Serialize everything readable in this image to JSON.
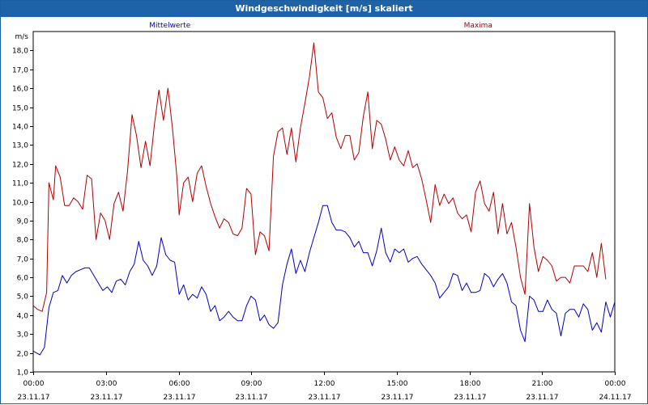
{
  "window": {
    "title": "Windgeschwindigkeit [m/s] skaliert"
  },
  "chart_data": {
    "type": "line",
    "title": "Windgeschwindigkeit [m/s] skaliert",
    "ylabel": "m/s",
    "xlabel": "",
    "ylim": [
      1.0,
      19.0
    ],
    "xlim_hours": [
      0,
      24
    ],
    "y_ticks": [
      "1,0",
      "2,0",
      "3,0",
      "4,0",
      "5,0",
      "6,0",
      "7,0",
      "8,0",
      "9,0",
      "10,0",
      "11,0",
      "12,0",
      "13,0",
      "14,0",
      "15,0",
      "16,0",
      "17,0",
      "18,0"
    ],
    "x_ticks": [
      {
        "time": "00:00",
        "date": "23.11.17"
      },
      {
        "time": "03:00",
        "date": "23.11.17"
      },
      {
        "time": "06:00",
        "date": "23.11.17"
      },
      {
        "time": "09:00",
        "date": "23.11.17"
      },
      {
        "time": "12:00",
        "date": "23.11.17"
      },
      {
        "time": "15:00",
        "date": "23.11.17"
      },
      {
        "time": "18:00",
        "date": "23.11.17"
      },
      {
        "time": "21:00",
        "date": "23.11.17"
      },
      {
        "time": "00:00",
        "date": "24.11.17"
      }
    ],
    "grid": true,
    "series": [
      {
        "name": "Mittelwerte",
        "color": "#0000c0",
        "points": [
          [
            0.0,
            2.1
          ],
          [
            0.3,
            1.9
          ],
          [
            0.5,
            2.3
          ],
          [
            0.7,
            4.4
          ],
          [
            0.9,
            5.2
          ],
          [
            1.1,
            5.3
          ],
          [
            1.3,
            6.1
          ],
          [
            1.5,
            5.7
          ],
          [
            1.7,
            6.1
          ],
          [
            1.9,
            6.3
          ],
          [
            2.1,
            6.4
          ],
          [
            2.3,
            6.5
          ],
          [
            2.5,
            6.5
          ],
          [
            2.7,
            6.1
          ],
          [
            2.9,
            5.7
          ],
          [
            3.1,
            5.3
          ],
          [
            3.3,
            5.5
          ],
          [
            3.5,
            5.2
          ],
          [
            3.7,
            5.8
          ],
          [
            3.9,
            5.9
          ],
          [
            4.1,
            5.6
          ],
          [
            4.3,
            6.3
          ],
          [
            4.5,
            6.7
          ],
          [
            4.7,
            7.9
          ],
          [
            4.9,
            6.9
          ],
          [
            5.1,
            6.6
          ],
          [
            5.3,
            6.1
          ],
          [
            5.5,
            6.6
          ],
          [
            5.7,
            8.1
          ],
          [
            5.9,
            7.2
          ],
          [
            6.1,
            6.9
          ],
          [
            6.3,
            6.8
          ],
          [
            6.5,
            5.1
          ],
          [
            6.7,
            5.6
          ],
          [
            6.9,
            4.8
          ],
          [
            7.1,
            5.1
          ],
          [
            7.3,
            4.9
          ],
          [
            7.5,
            5.5
          ],
          [
            7.7,
            5.1
          ],
          [
            7.9,
            4.2
          ],
          [
            8.1,
            4.5
          ],
          [
            8.3,
            3.7
          ],
          [
            8.5,
            3.9
          ],
          [
            8.7,
            4.2
          ],
          [
            8.9,
            3.9
          ],
          [
            9.1,
            3.7
          ],
          [
            9.3,
            3.7
          ],
          [
            9.5,
            4.5
          ],
          [
            9.7,
            5.0
          ],
          [
            9.9,
            4.8
          ],
          [
            10.1,
            3.7
          ],
          [
            10.3,
            4.0
          ],
          [
            10.5,
            3.5
          ],
          [
            10.7,
            3.3
          ],
          [
            10.9,
            3.6
          ],
          [
            11.1,
            5.6
          ],
          [
            11.3,
            6.7
          ],
          [
            11.5,
            7.5
          ],
          [
            11.7,
            6.2
          ],
          [
            11.9,
            6.9
          ],
          [
            12.1,
            6.3
          ],
          [
            12.3,
            7.3
          ],
          [
            12.5,
            8.1
          ],
          [
            12.7,
            8.9
          ],
          [
            12.9,
            9.8
          ],
          [
            13.1,
            9.8
          ],
          [
            13.3,
            8.9
          ],
          [
            13.5,
            8.5
          ],
          [
            13.7,
            8.5
          ],
          [
            13.9,
            8.4
          ],
          [
            14.1,
            8.1
          ],
          [
            14.3,
            7.6
          ],
          [
            14.5,
            7.9
          ],
          [
            14.7,
            7.3
          ],
          [
            14.9,
            7.3
          ],
          [
            15.1,
            6.6
          ],
          [
            15.3,
            7.4
          ],
          [
            15.5,
            8.6
          ],
          [
            15.7,
            7.3
          ],
          [
            15.9,
            6.8
          ],
          [
            16.1,
            7.5
          ],
          [
            16.3,
            7.3
          ],
          [
            16.5,
            7.5
          ],
          [
            16.7,
            6.8
          ],
          [
            16.9,
            7.0
          ],
          [
            17.1,
            7.1
          ],
          [
            17.3,
            6.7
          ],
          [
            17.5,
            6.4
          ],
          [
            17.7,
            6.1
          ],
          [
            17.9,
            5.7
          ],
          [
            18.1,
            4.9
          ],
          [
            18.3,
            5.2
          ],
          [
            18.5,
            5.5
          ],
          [
            18.7,
            6.2
          ],
          [
            18.9,
            6.1
          ],
          [
            19.1,
            5.3
          ],
          [
            19.3,
            5.7
          ],
          [
            19.5,
            5.2
          ],
          [
            19.7,
            5.2
          ],
          [
            19.9,
            5.3
          ],
          [
            20.1,
            6.2
          ],
          [
            20.3,
            6.0
          ],
          [
            20.5,
            5.5
          ],
          [
            20.7,
            5.9
          ],
          [
            20.9,
            6.2
          ],
          [
            21.1,
            5.7
          ],
          [
            21.3,
            4.7
          ],
          [
            21.5,
            4.5
          ],
          [
            21.7,
            3.2
          ],
          [
            21.9,
            2.6
          ],
          [
            22.1,
            5.0
          ],
          [
            22.3,
            4.8
          ],
          [
            22.5,
            4.2
          ],
          [
            22.7,
            4.2
          ],
          [
            22.9,
            4.8
          ],
          [
            23.1,
            4.3
          ],
          [
            23.3,
            4.1
          ],
          [
            23.5,
            2.9
          ],
          [
            23.7,
            4.1
          ],
          [
            23.9,
            4.3
          ],
          [
            24.1,
            4.3
          ],
          [
            24.3,
            3.9
          ],
          [
            24.5,
            4.6
          ],
          [
            24.7,
            4.3
          ],
          [
            24.9,
            3.2
          ],
          [
            25.1,
            3.6
          ],
          [
            25.3,
            3.1
          ],
          [
            25.5,
            4.7
          ],
          [
            25.7,
            3.9
          ],
          [
            25.9,
            4.7
          ]
        ]
      },
      {
        "name": "Maxima",
        "color": "#b00000",
        "points": [
          [
            0.0,
            4.5
          ],
          [
            0.2,
            4.3
          ],
          [
            0.4,
            4.2
          ],
          [
            0.6,
            5.2
          ],
          [
            0.7,
            11.0
          ],
          [
            0.9,
            10.1
          ],
          [
            1.0,
            11.9
          ],
          [
            1.2,
            11.3
          ],
          [
            1.4,
            9.8
          ],
          [
            1.6,
            9.8
          ],
          [
            1.8,
            10.2
          ],
          [
            2.0,
            10.0
          ],
          [
            2.2,
            9.6
          ],
          [
            2.4,
            11.4
          ],
          [
            2.6,
            11.2
          ],
          [
            2.8,
            8.0
          ],
          [
            3.0,
            9.4
          ],
          [
            3.2,
            9.0
          ],
          [
            3.4,
            8.0
          ],
          [
            3.6,
            9.9
          ],
          [
            3.8,
            10.5
          ],
          [
            4.0,
            9.5
          ],
          [
            4.2,
            11.6
          ],
          [
            4.4,
            14.6
          ],
          [
            4.6,
            13.5
          ],
          [
            4.8,
            11.8
          ],
          [
            5.0,
            13.2
          ],
          [
            5.2,
            11.9
          ],
          [
            5.4,
            14.1
          ],
          [
            5.6,
            15.9
          ],
          [
            5.8,
            14.3
          ],
          [
            6.0,
            16.0
          ],
          [
            6.2,
            13.9
          ],
          [
            6.4,
            11.3
          ],
          [
            6.5,
            9.3
          ],
          [
            6.7,
            11.0
          ],
          [
            6.9,
            11.3
          ],
          [
            7.1,
            10.0
          ],
          [
            7.3,
            11.5
          ],
          [
            7.5,
            11.9
          ],
          [
            7.7,
            10.8
          ],
          [
            7.9,
            9.9
          ],
          [
            8.1,
            9.2
          ],
          [
            8.3,
            8.6
          ],
          [
            8.5,
            9.1
          ],
          [
            8.7,
            8.9
          ],
          [
            8.9,
            8.3
          ],
          [
            9.1,
            8.2
          ],
          [
            9.3,
            8.6
          ],
          [
            9.5,
            10.7
          ],
          [
            9.7,
            10.4
          ],
          [
            9.9,
            7.2
          ],
          [
            10.1,
            8.4
          ],
          [
            10.3,
            8.2
          ],
          [
            10.5,
            7.4
          ],
          [
            10.7,
            12.4
          ],
          [
            10.9,
            13.7
          ],
          [
            11.1,
            13.9
          ],
          [
            11.3,
            12.5
          ],
          [
            11.5,
            13.9
          ],
          [
            11.7,
            12.1
          ],
          [
            11.9,
            13.9
          ],
          [
            12.1,
            15.2
          ],
          [
            12.3,
            16.6
          ],
          [
            12.5,
            18.4
          ],
          [
            12.7,
            15.8
          ],
          [
            12.9,
            15.5
          ],
          [
            13.1,
            14.4
          ],
          [
            13.3,
            14.7
          ],
          [
            13.5,
            13.4
          ],
          [
            13.7,
            12.8
          ],
          [
            13.9,
            13.5
          ],
          [
            14.1,
            13.5
          ],
          [
            14.3,
            12.2
          ],
          [
            14.5,
            12.6
          ],
          [
            14.7,
            14.5
          ],
          [
            14.9,
            15.8
          ],
          [
            15.1,
            12.8
          ],
          [
            15.3,
            14.3
          ],
          [
            15.5,
            14.1
          ],
          [
            15.7,
            13.3
          ],
          [
            15.9,
            12.2
          ],
          [
            16.1,
            12.9
          ],
          [
            16.3,
            12.2
          ],
          [
            16.5,
            11.9
          ],
          [
            16.7,
            12.7
          ],
          [
            16.9,
            11.8
          ],
          [
            17.1,
            12.0
          ],
          [
            17.3,
            11.2
          ],
          [
            17.5,
            10.1
          ],
          [
            17.7,
            8.9
          ],
          [
            17.9,
            10.9
          ],
          [
            18.1,
            9.8
          ],
          [
            18.3,
            10.4
          ],
          [
            18.5,
            9.9
          ],
          [
            18.7,
            10.2
          ],
          [
            18.9,
            9.4
          ],
          [
            19.1,
            9.1
          ],
          [
            19.3,
            9.3
          ],
          [
            19.5,
            8.4
          ],
          [
            19.7,
            10.5
          ],
          [
            19.9,
            11.1
          ],
          [
            20.1,
            9.9
          ],
          [
            20.3,
            9.5
          ],
          [
            20.5,
            10.5
          ],
          [
            20.7,
            8.3
          ],
          [
            20.9,
            9.9
          ],
          [
            21.1,
            8.3
          ],
          [
            21.3,
            8.9
          ],
          [
            21.5,
            7.6
          ],
          [
            21.7,
            6.0
          ],
          [
            21.9,
            5.1
          ],
          [
            22.1,
            9.9
          ],
          [
            22.3,
            7.6
          ],
          [
            22.5,
            6.3
          ],
          [
            22.7,
            7.1
          ],
          [
            22.9,
            6.9
          ],
          [
            23.1,
            6.6
          ],
          [
            23.3,
            5.8
          ],
          [
            23.5,
            6.0
          ],
          [
            23.7,
            6.0
          ],
          [
            23.9,
            5.7
          ],
          [
            24.1,
            6.6
          ],
          [
            24.3,
            6.6
          ],
          [
            24.5,
            6.6
          ],
          [
            24.7,
            6.3
          ],
          [
            24.9,
            7.3
          ],
          [
            25.1,
            6.0
          ],
          [
            25.3,
            7.8
          ],
          [
            25.5,
            5.9
          ]
        ]
      }
    ]
  }
}
